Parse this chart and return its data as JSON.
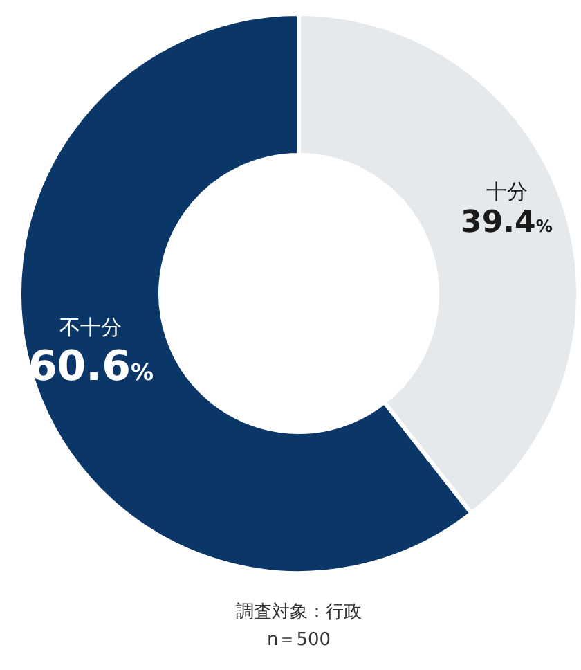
{
  "chart_data": {
    "type": "donut",
    "categories": [
      "十分",
      "不十分"
    ],
    "values": [
      39.4,
      60.6
    ],
    "colors": [
      "#e5e9ec",
      "#0b3768"
    ],
    "value_labels": [
      "39.4%",
      "60.6%"
    ],
    "annotations": [
      "調査対象：行政",
      "n＝500"
    ]
  }
}
